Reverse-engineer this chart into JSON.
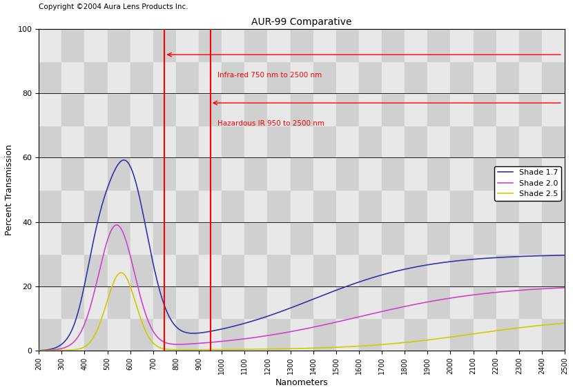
{
  "title": "AUR-99 Comparative",
  "copyright": "Copyright ©2004 Aura Lens Products Inc.",
  "xlabel": "Nanometers",
  "ylabel": "Percent Transmission",
  "xlim": [
    200,
    2500
  ],
  "ylim": [
    0,
    100
  ],
  "xticks": [
    200,
    300,
    400,
    500,
    600,
    700,
    800,
    900,
    1000,
    1100,
    1200,
    1300,
    1400,
    1500,
    1600,
    1700,
    1800,
    1900,
    2000,
    2100,
    2200,
    2300,
    2400,
    2500
  ],
  "yticks": [
    0,
    20,
    40,
    60,
    80,
    100
  ],
  "vline1_x": 750,
  "vline2_x": 950,
  "hline1_y": 92,
  "hline2_y": 77,
  "arrow1_label": "Infra-red 750 nm to 2500 nm",
  "arrow2_label": "Hazardous IR 950 to 2500 nm",
  "color_shade17": "#3333AA",
  "color_shade20": "#CC44CC",
  "color_shade25": "#CCCC00",
  "color_red": "#FF0000",
  "legend_labels": [
    "Shade 1.7",
    "Shade 2.0",
    "Shade 2.5"
  ],
  "checker_light": "#E8E8E8",
  "checker_dark": "#D0D0D0"
}
